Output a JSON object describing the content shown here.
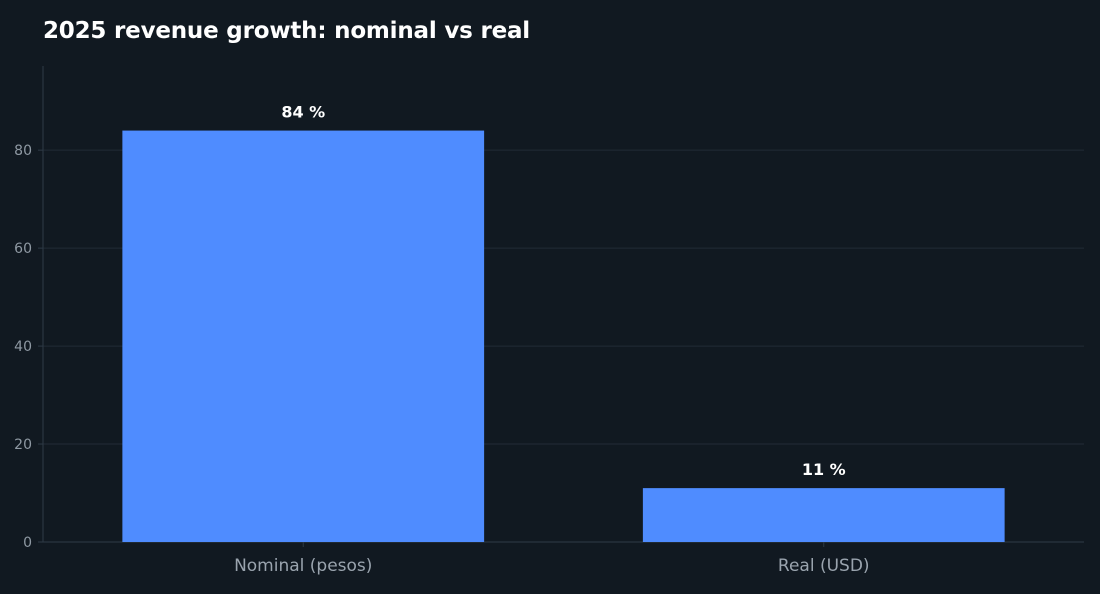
{
  "chart_data": {
    "type": "bar",
    "title": "2025 revenue growth: nominal vs real",
    "xlabel": "",
    "ylabel": "",
    "categories": [
      "Nominal (pesos)",
      "Real (USD)"
    ],
    "values": [
      84,
      11
    ],
    "data_labels": [
      "84 %",
      "11 %"
    ],
    "ylim": [
      0,
      98
    ],
    "yticks": [
      0,
      20,
      40,
      60,
      80
    ],
    "grid": true,
    "legend": "none",
    "colors": {
      "bar": "#4f8cff",
      "background": "#111921",
      "grid": "#222c36",
      "text": "#ffffff",
      "tick": "#8f99a3"
    }
  }
}
